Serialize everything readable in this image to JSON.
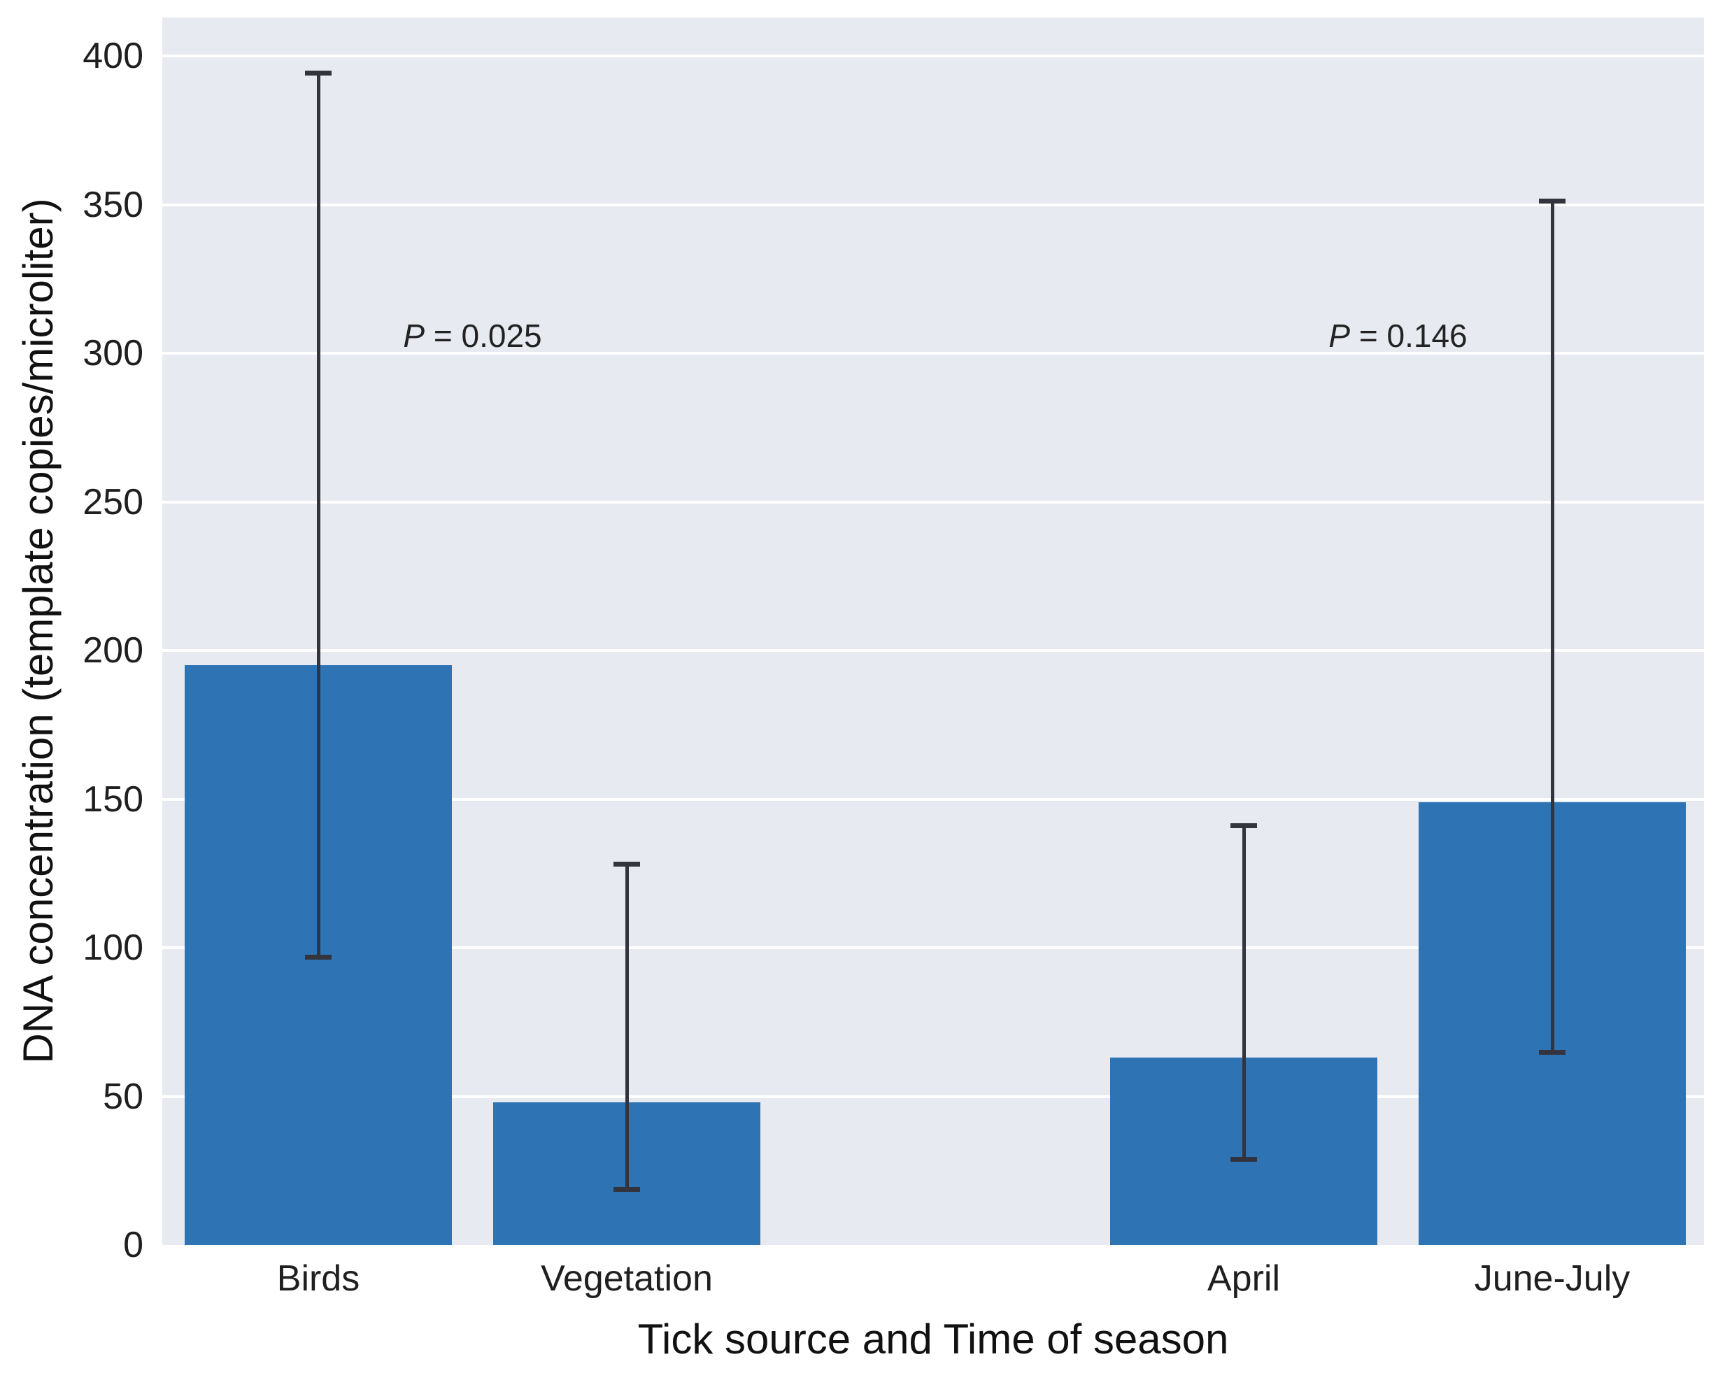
{
  "figure": {
    "title": "",
    "xlabel": "Tick source and Time of season",
    "ylabel": "DNA concentration (template copies/microliter)"
  },
  "chart_data": {
    "type": "bar",
    "title": "",
    "xlabel": "Tick source and Time of season",
    "ylabel": "DNA concentration (template copies/microliter)",
    "categories": [
      "Birds",
      "Vegetation",
      "April",
      "June-July"
    ],
    "values": [
      195,
      48,
      63,
      149
    ],
    "error_low": [
      96,
      18,
      28,
      64
    ],
    "error_high": [
      395,
      129,
      142,
      352
    ],
    "positions": [
      0,
      1,
      3,
      4
    ],
    "category_groups": [
      {
        "name": "Tick source",
        "members": [
          "Birds",
          "Vegetation"
        ]
      },
      {
        "name": "Time of season",
        "members": [
          "April",
          "June-July"
        ]
      }
    ],
    "ylim": [
      0,
      413
    ],
    "yticks": [
      0,
      50,
      100,
      150,
      200,
      250,
      300,
      350,
      400
    ],
    "grid": "horizontal",
    "legend": "none",
    "annotations": [
      {
        "text": "P = 0.025",
        "between": [
          0,
          1
        ],
        "y": 306
      },
      {
        "text": "P = 0.146",
        "between": [
          3,
          4
        ],
        "y": 306
      }
    ],
    "colors": {
      "bar": "#2E74B4",
      "error_bar": "#33343E",
      "plot_background": "#E8EAF2",
      "gridline": "#FFFFFF",
      "tick_text": "#1F1F1F"
    }
  }
}
